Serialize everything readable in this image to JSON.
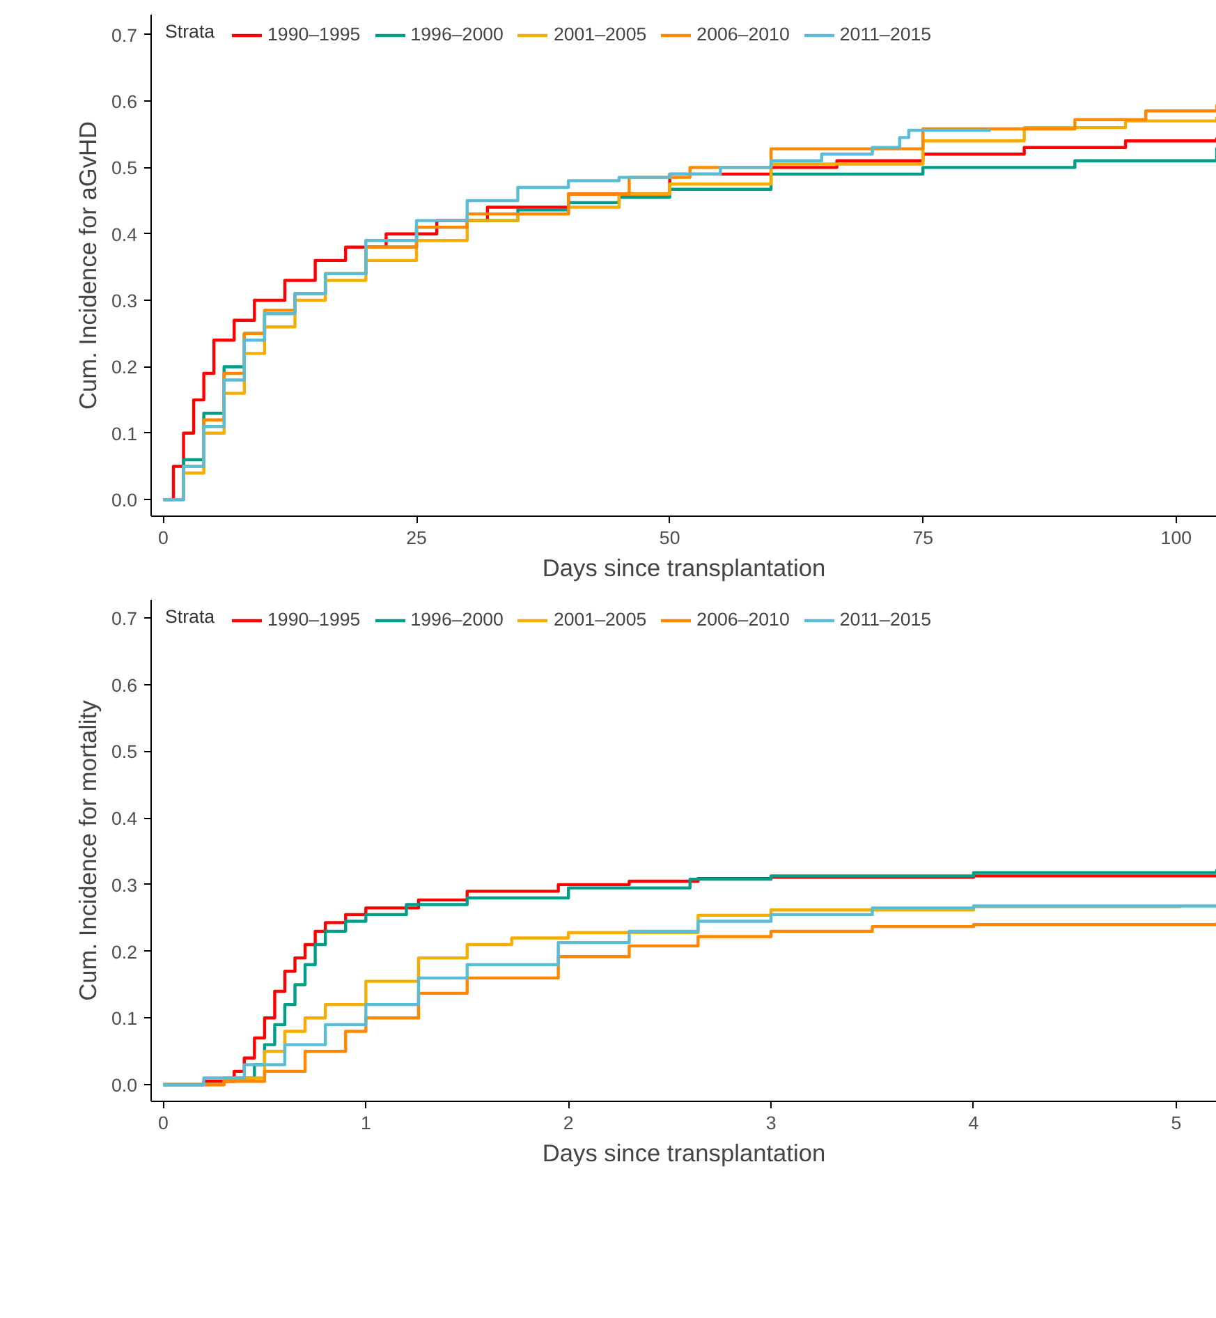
{
  "chart_data": [
    {
      "type": "step",
      "xlabel": "Days since transplantation",
      "ylabel": "Cum. Incidence for aGvHD",
      "legend_title": "Strata",
      "legend": "top",
      "grid": false,
      "line_style": "solid",
      "xlim": [
        -1.2,
        104
      ],
      "xticks": [
        0,
        25,
        50,
        75,
        100
      ],
      "ylim": [
        -0.025,
        0.73
      ],
      "yticks": [
        {
          "value": 0,
          "label": "0.0"
        },
        {
          "value": 0.1,
          "label": "0.1"
        },
        {
          "value": 0.2,
          "label": "0.2"
        },
        {
          "value": 0.3,
          "label": "0.3"
        },
        {
          "value": 0.4,
          "label": "0.4"
        },
        {
          "value": 0.5,
          "label": "0.5"
        },
        {
          "value": 0.6,
          "label": "0.6"
        },
        {
          "value": 0.7,
          "label": "0.7"
        }
      ],
      "series": [
        {
          "name": "1990–1995",
          "color": "#ff0000",
          "x": [
            0,
            1,
            2,
            3,
            4,
            5,
            7,
            9,
            12,
            15,
            18,
            22,
            27,
            32,
            40,
            50,
            60,
            66.5,
            75,
            85,
            95,
            104
          ],
          "values": [
            0,
            0.05,
            0.1,
            0.15,
            0.19,
            0.24,
            0.27,
            0.3,
            0.33,
            0.36,
            0.38,
            0.4,
            0.42,
            0.44,
            0.46,
            0.49,
            0.5,
            0.51,
            0.52,
            0.53,
            0.54,
            0.545
          ]
        },
        {
          "name": "1996–2000",
          "color": "#009e87",
          "x": [
            0,
            2,
            4,
            6,
            8,
            10,
            13,
            16,
            20,
            25,
            30,
            35,
            40,
            45,
            50,
            60,
            75,
            90,
            104
          ],
          "values": [
            0,
            0.06,
            0.13,
            0.2,
            0.25,
            0.28,
            0.31,
            0.34,
            0.38,
            0.41,
            0.42,
            0.436,
            0.447,
            0.455,
            0.467,
            0.49,
            0.5,
            0.51,
            0.53
          ]
        },
        {
          "name": "2001–2005",
          "color": "#f5ad00",
          "x": [
            0,
            2,
            4,
            6,
            8,
            10,
            13,
            16,
            20,
            25,
            30,
            35,
            40,
            45,
            50,
            60,
            75,
            85,
            95,
            104
          ],
          "values": [
            0,
            0.04,
            0.1,
            0.16,
            0.22,
            0.26,
            0.3,
            0.33,
            0.36,
            0.39,
            0.42,
            0.43,
            0.44,
            0.46,
            0.475,
            0.505,
            0.54,
            0.56,
            0.57,
            0.576
          ]
        },
        {
          "name": "2006–2010",
          "color": "#ff8800",
          "x": [
            0,
            2,
            4,
            6,
            8,
            10,
            13,
            16,
            20,
            25,
            30,
            40,
            46,
            52,
            60,
            75,
            90,
            97,
            104
          ],
          "values": [
            0,
            0.05,
            0.12,
            0.19,
            0.25,
            0.285,
            0.31,
            0.34,
            0.38,
            0.41,
            0.43,
            0.46,
            0.485,
            0.5,
            0.528,
            0.558,
            0.572,
            0.585,
            0.595
          ]
        },
        {
          "name": "2011–2015",
          "color": "#5bbcd6",
          "x": [
            0,
            2,
            4,
            6,
            8,
            10,
            13,
            16,
            20,
            25,
            30,
            35,
            40,
            45,
            50,
            55,
            60,
            65,
            70,
            72.7,
            73.6,
            81.7
          ],
          "values": [
            0,
            0.05,
            0.11,
            0.18,
            0.24,
            0.28,
            0.31,
            0.34,
            0.39,
            0.42,
            0.45,
            0.47,
            0.48,
            0.485,
            0.49,
            0.5,
            0.51,
            0.52,
            0.53,
            0.545,
            0.556,
            0.556
          ]
        }
      ]
    },
    {
      "type": "step",
      "xlabel": "Days since transplantation",
      "ylabel": "Cum. Incidence for mortality",
      "legend_title": "Strata",
      "legend": "top",
      "grid": false,
      "line_style": "solid",
      "xlim": [
        -0.06,
        5.2
      ],
      "xticks": [
        0,
        1,
        2,
        3,
        4,
        5
      ],
      "ylim": [
        -0.025,
        0.727
      ],
      "yticks": [
        {
          "value": 0,
          "label": "0.0"
        },
        {
          "value": 0.1,
          "label": "0.1"
        },
        {
          "value": 0.2,
          "label": "0.2"
        },
        {
          "value": 0.3,
          "label": "0.3"
        },
        {
          "value": 0.4,
          "label": "0.4"
        },
        {
          "value": 0.5,
          "label": "0.5"
        },
        {
          "value": 0.6,
          "label": "0.6"
        },
        {
          "value": 0.7,
          "label": "0.7"
        }
      ],
      "series": [
        {
          "name": "1990–1995",
          "color": "#ff0000",
          "x": [
            0,
            0.2,
            0.35,
            0.4,
            0.45,
            0.5,
            0.55,
            0.6,
            0.65,
            0.7,
            0.75,
            0.8,
            0.9,
            1.0,
            1.26,
            1.5,
            1.95,
            2.3,
            2.64,
            3.0,
            4.0,
            5.2
          ],
          "values": [
            0,
            0.005,
            0.02,
            0.04,
            0.07,
            0.1,
            0.14,
            0.17,
            0.19,
            0.21,
            0.23,
            0.243,
            0.255,
            0.265,
            0.277,
            0.29,
            0.3,
            0.305,
            0.309,
            0.311,
            0.313,
            0.314
          ]
        },
        {
          "name": "1996–2000",
          "color": "#009e87",
          "x": [
            0,
            0.3,
            0.45,
            0.5,
            0.55,
            0.6,
            0.65,
            0.7,
            0.75,
            0.8,
            0.9,
            1.0,
            1.2,
            1.5,
            2.0,
            2.6,
            3.0,
            4.0,
            5.2
          ],
          "values": [
            0,
            0.01,
            0.03,
            0.06,
            0.09,
            0.12,
            0.15,
            0.18,
            0.21,
            0.23,
            0.245,
            0.255,
            0.27,
            0.28,
            0.295,
            0.308,
            0.313,
            0.318,
            0.323
          ]
        },
        {
          "name": "2001–2005",
          "color": "#f5ad00",
          "x": [
            0,
            0.3,
            0.5,
            0.6,
            0.7,
            0.8,
            1.0,
            1.26,
            1.5,
            1.72,
            2.0,
            2.64,
            3.0,
            4.0,
            5.02
          ],
          "values": [
            0,
            0.01,
            0.05,
            0.08,
            0.1,
            0.12,
            0.155,
            0.19,
            0.21,
            0.22,
            0.228,
            0.254,
            0.262,
            0.267,
            0.268
          ]
        },
        {
          "name": "2006–2010",
          "color": "#ff8800",
          "x": [
            0,
            0.3,
            0.5,
            0.7,
            0.9,
            1.0,
            1.26,
            1.5,
            1.95,
            2.3,
            2.64,
            3.0,
            3.5,
            4.0,
            4.5,
            5.2
          ],
          "values": [
            0,
            0.005,
            0.02,
            0.05,
            0.08,
            0.1,
            0.137,
            0.16,
            0.192,
            0.208,
            0.222,
            0.23,
            0.237,
            0.24,
            0.24,
            0.243
          ]
        },
        {
          "name": "2011–2015",
          "color": "#5bbcd6",
          "x": [
            0,
            0.2,
            0.4,
            0.6,
            0.8,
            1.0,
            1.26,
            1.5,
            1.95,
            2.3,
            2.64,
            3.0,
            3.5,
            4.0,
            5.2
          ],
          "values": [
            0,
            0.01,
            0.03,
            0.06,
            0.09,
            0.12,
            0.16,
            0.18,
            0.213,
            0.23,
            0.245,
            0.255,
            0.265,
            0.268,
            0.27
          ]
        }
      ]
    }
  ]
}
